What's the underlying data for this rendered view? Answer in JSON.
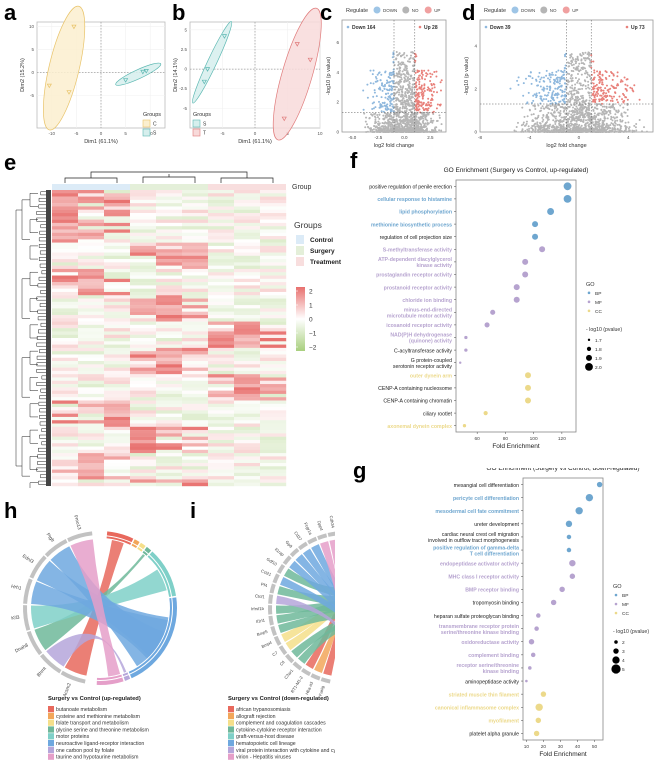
{
  "panel_labels": [
    "a",
    "b",
    "c",
    "d",
    "e",
    "f",
    "g",
    "h",
    "i"
  ],
  "chart_data": [
    {
      "id": "a",
      "type": "scatter",
      "title": "",
      "xlabel": "Dim1 (61.1%)",
      "ylabel": "Dim2 (15.2%)",
      "xlim": [
        -13,
        13
      ],
      "ylim": [
        -12,
        11
      ],
      "xticks": [
        -10,
        -5,
        0,
        5,
        10
      ],
      "yticks": [
        -5,
        0,
        5,
        10
      ],
      "legend_title": "Groups",
      "legend_position": "bottom-right",
      "series": [
        {
          "name": "C",
          "color": "#e9c46a",
          "fill": "#fbefcf",
          "points": [
            [
              -5.5,
              10
            ],
            [
              -10.5,
              -2.8
            ],
            [
              -6.5,
              -4.2
            ]
          ]
        },
        {
          "name": "S",
          "color": "#5cb8b2",
          "fill": "#d6efed",
          "points": [
            [
              5,
              -1.6
            ],
            [
              8.5,
              0.2
            ],
            [
              9.2,
              0.4
            ]
          ]
        }
      ]
    },
    {
      "id": "b",
      "type": "scatter",
      "title": "",
      "xlabel": "Dim1 (61.1%)",
      "ylabel": "Dim2 (14.1%)",
      "xlim": [
        -10,
        10
      ],
      "ylim": [
        -7.5,
        6
      ],
      "xticks": [
        -5,
        0,
        5,
        10
      ],
      "yticks": [
        -5,
        -2.5,
        0,
        2.5,
        5
      ],
      "legend_title": "Groups",
      "legend_position": "bottom-left",
      "series": [
        {
          "name": "S",
          "color": "#5cb8b2",
          "fill": "#d6efed",
          "points": [
            [
              -4.7,
              4.2
            ],
            [
              -7.3,
              0
            ],
            [
              -7.8,
              -1.6
            ]
          ]
        },
        {
          "name": "T",
          "color": "#e07b7b",
          "fill": "#f8dada",
          "points": [
            [
              6.5,
              3.2
            ],
            [
              8.5,
              1.2
            ],
            [
              4.5,
              -6.3
            ]
          ]
        }
      ]
    },
    {
      "id": "c",
      "type": "scatter",
      "title": "",
      "xlabel": "log2 fold change",
      "ylabel": "-log10 (p value)",
      "xlim": [
        -6,
        4
      ],
      "ylim": [
        0,
        7.5
      ],
      "xticks": [
        -5.0,
        -2.5,
        0.0,
        2.5
      ],
      "yticks": [
        0,
        2,
        4,
        6
      ],
      "legend_title": "Regulate",
      "legend_position": "top",
      "legend": [
        {
          "name": "DOWN",
          "color": "#9ec5e6"
        },
        {
          "name": "NO",
          "color": "#b5b5b5"
        },
        {
          "name": "UP",
          "color": "#f0a0a0"
        }
      ],
      "annotations": {
        "down": "Down 164",
        "up": "Up 28"
      },
      "thresholds": {
        "fc": [
          -1,
          1
        ],
        "p": 1.3
      },
      "summary": {
        "down_count": 164,
        "up_count": 28
      }
    },
    {
      "id": "d",
      "type": "scatter",
      "title": "",
      "xlabel": "log2 fold change",
      "ylabel": "-log10 (p value)",
      "xlim": [
        -8,
        6
      ],
      "ylim": [
        0,
        5.2
      ],
      "xticks": [
        -8,
        -4,
        0,
        4
      ],
      "yticks": [
        0,
        2,
        4
      ],
      "legend_title": "Regulate",
      "legend_position": "top",
      "legend": [
        {
          "name": "DOWN",
          "color": "#9ec5e6"
        },
        {
          "name": "NO",
          "color": "#b5b5b5"
        },
        {
          "name": "UP",
          "color": "#f0a0a0"
        }
      ],
      "annotations": {
        "down": "Down 39",
        "up": "Up 73"
      },
      "thresholds": {
        "fc": [
          -1,
          1
        ],
        "p": 1.3
      },
      "summary": {
        "down_count": 39,
        "up_count": 73
      }
    },
    {
      "id": "e",
      "type": "heatmap",
      "title": "",
      "annotation_label": "Group",
      "legend_title": "Groups",
      "groups": [
        {
          "name": "Control",
          "color": "#dcebf7"
        },
        {
          "name": "Surgery",
          "color": "#e4efd9"
        },
        {
          "name": "Treatment",
          "color": "#f8dede"
        }
      ],
      "columns_per_group": 3,
      "scale": {
        "ticks": [
          2,
          1,
          0,
          -1,
          -2
        ],
        "colors": [
          "#e8706e",
          "#ffffff",
          "#a8cf7e"
        ]
      },
      "row_count": 90
    },
    {
      "id": "f",
      "type": "scatter",
      "title": "GO Enrichment (Surgery vs Control, up-regulated)",
      "xlabel": "Fold Enrichment",
      "ylabel": "",
      "xlim": [
        45,
        130
      ],
      "xticks": [
        60,
        80,
        100,
        120
      ],
      "legend_title": "GO",
      "legend": [
        {
          "name": "BP",
          "color": "#6ea6cf"
        },
        {
          "name": "MF",
          "color": "#b6a3cf"
        },
        {
          "name": "CC",
          "color": "#ecd98a"
        }
      ],
      "size_legend_title": "- log10 (pvalue)",
      "size_legend": [
        1.7,
        1.8,
        1.9,
        2.0
      ],
      "terms": [
        {
          "term": "positive regulation of penile erection",
          "cat": "BP",
          "x": 124,
          "p": 2.0,
          "label_color": "#222222"
        },
        {
          "term": "cellular response to histamine",
          "cat": "BP",
          "x": 124,
          "p": 2.0,
          "label_color": "#6ea6cf"
        },
        {
          "term": "lipid phosphorylation",
          "cat": "BP",
          "x": 112,
          "p": 1.95,
          "label_color": "#6ea6cf"
        },
        {
          "term": "methionine biosynthetic process",
          "cat": "BP",
          "x": 101,
          "p": 1.9,
          "label_color": "#6ea6cf"
        },
        {
          "term": "regulation of cell projection size",
          "cat": "BP",
          "x": 101,
          "p": 1.9,
          "label_color": "#222222"
        },
        {
          "term": "S-methyltransferase activity",
          "cat": "MF",
          "x": 106,
          "p": 1.9,
          "label_color": "#b6a3cf"
        },
        {
          "term": "ATP-dependent diacylglycerol\nkinase activity",
          "cat": "MF",
          "x": 94,
          "p": 1.9,
          "label_color": "#b6a3cf"
        },
        {
          "term": "prostaglandin receptor activity",
          "cat": "MF",
          "x": 94,
          "p": 1.9,
          "label_color": "#b6a3cf"
        },
        {
          "term": "prostanoid receptor activity",
          "cat": "MF",
          "x": 88,
          "p": 1.9,
          "label_color": "#b6a3cf"
        },
        {
          "term": "chloride ion binding",
          "cat": "MF",
          "x": 88,
          "p": 1.9,
          "label_color": "#b6a3cf"
        },
        {
          "term": "minus-end-directed\nmicrotubule motor activity",
          "cat": "MF",
          "x": 71,
          "p": 1.85,
          "label_color": "#b6a3cf"
        },
        {
          "term": "icosanoid receptor activity",
          "cat": "MF",
          "x": 67,
          "p": 1.85,
          "label_color": "#b6a3cf"
        },
        {
          "term": "NAD(P)H dehydrogenase\n(quinone) activity",
          "cat": "MF",
          "x": 52,
          "p": 1.75,
          "label_color": "#b6a3cf"
        },
        {
          "term": "C-acyltransferase activity",
          "cat": "MF",
          "x": 52,
          "p": 1.75,
          "label_color": "#222222"
        },
        {
          "term": "G protein-coupled\nserotonin receptor activity",
          "cat": "MF",
          "x": 48,
          "p": 1.7,
          "label_color": "#222222"
        },
        {
          "term": "outer dynein arm",
          "cat": "CC",
          "x": 96,
          "p": 1.9,
          "label_color": "#ecd98a"
        },
        {
          "term": "CENP-A containing nucleosome",
          "cat": "CC",
          "x": 96,
          "p": 1.9,
          "label_color": "#222222"
        },
        {
          "term": "CENP-A containing chromatin",
          "cat": "CC",
          "x": 96,
          "p": 1.9,
          "label_color": "#222222"
        },
        {
          "term": "ciliary rootlet",
          "cat": "CC",
          "x": 66,
          "p": 1.8,
          "label_color": "#222222"
        },
        {
          "term": "axonemal dynein complex",
          "cat": "CC",
          "x": 51,
          "p": 1.75,
          "label_color": "#ecd98a"
        }
      ]
    },
    {
      "id": "g",
      "type": "scatter",
      "title": "GO Enrichment (Surgery vs Control, down-regulated)",
      "xlabel": "Fold Enrichment",
      "ylabel": "",
      "xlim": [
        8,
        55
      ],
      "xticks": [
        10,
        20,
        30,
        40,
        50
      ],
      "legend_title": "GO",
      "legend": [
        {
          "name": "BP",
          "color": "#6ea6cf"
        },
        {
          "name": "MF",
          "color": "#b6a3cf"
        },
        {
          "name": "CC",
          "color": "#ecd98a"
        }
      ],
      "size_legend_title": "- log10 (pvalue)",
      "size_legend": [
        2,
        3,
        4,
        5
      ],
      "terms": [
        {
          "term": "mesangial cell differentiation",
          "cat": "BP",
          "x": 53,
          "p": 3,
          "label_color": "#222222"
        },
        {
          "term": "pericyte cell differentiation",
          "cat": "BP",
          "x": 47,
          "p": 4,
          "label_color": "#6ea6cf"
        },
        {
          "term": "mesodermal cell fate commitment",
          "cat": "BP",
          "x": 41,
          "p": 4,
          "label_color": "#6ea6cf"
        },
        {
          "term": "ureter development",
          "cat": "BP",
          "x": 35,
          "p": 3.5,
          "label_color": "#222222"
        },
        {
          "term": "cardiac neural crest cell migration\ninvolved in outflow tract morphogenesis",
          "cat": "BP",
          "x": 35,
          "p": 2.5,
          "label_color": "#222222"
        },
        {
          "term": "positive regulation of gamma-delta\nT cell differentiation",
          "cat": "BP",
          "x": 35,
          "p": 2.5,
          "label_color": "#6ea6cf"
        },
        {
          "term": "endopeptidase activator activity",
          "cat": "MF",
          "x": 37,
          "p": 3.5,
          "label_color": "#b6a3cf"
        },
        {
          "term": "MHC class I receptor activity",
          "cat": "MF",
          "x": 37,
          "p": 3,
          "label_color": "#b6a3cf"
        },
        {
          "term": "BMP receptor binding",
          "cat": "MF",
          "x": 31,
          "p": 3,
          "label_color": "#b6a3cf"
        },
        {
          "term": "tropomyosin binding",
          "cat": "MF",
          "x": 26,
          "p": 3,
          "label_color": "#222222"
        },
        {
          "term": "heparan sulfate proteoglycan binding",
          "cat": "MF",
          "x": 17,
          "p": 2.5,
          "label_color": "#222222"
        },
        {
          "term": "transmembrane receptor protein\nserine/threonine kinase binding",
          "cat": "MF",
          "x": 16,
          "p": 2.5,
          "label_color": "#b6a3cf"
        },
        {
          "term": "oxidoreductase activity",
          "cat": "MF",
          "x": 13,
          "p": 3,
          "label_color": "#b6a3cf"
        },
        {
          "term": "complement binding",
          "cat": "MF",
          "x": 14,
          "p": 2.5,
          "label_color": "#b6a3cf"
        },
        {
          "term": "receptor serine/threonine\nkinase binding",
          "cat": "MF",
          "x": 12,
          "p": 2,
          "label_color": "#b6a3cf"
        },
        {
          "term": "aminopeptidase activity",
          "cat": "MF",
          "x": 10,
          "p": 1.5,
          "label_color": "#222222"
        },
        {
          "term": "striated muscle thin filament",
          "cat": "CC",
          "x": 20,
          "p": 3,
          "label_color": "#ecd98a"
        },
        {
          "term": "canonical inflammasome complex",
          "cat": "CC",
          "x": 17.5,
          "p": 4,
          "label_color": "#ecd98a"
        },
        {
          "term": "myofilament",
          "cat": "CC",
          "x": 17,
          "p": 3,
          "label_color": "#ecd98a"
        },
        {
          "term": "platelet alpha granule",
          "cat": "CC",
          "x": 16,
          "p": 3,
          "label_color": "#222222"
        }
      ]
    },
    {
      "id": "h",
      "type": "chord",
      "title": "Surgery vs Control (up-regulated)",
      "genes": [
        "Acsm2",
        "Bhmt",
        "Dnah8",
        "Kif3",
        "Hrh1",
        "Ednl3",
        "Ptgfr",
        "Fmo13"
      ],
      "pathways": [
        {
          "name": "butanoate metabolism",
          "color": "#e8695d"
        },
        {
          "name": "cysteine and methionine metabolism",
          "color": "#f2a65a"
        },
        {
          "name": "folate transport and metabolism",
          "color": "#f5df8a"
        },
        {
          "name": "glycine serine and threonine metabolism",
          "color": "#6fb89a"
        },
        {
          "name": "motor proteins",
          "color": "#7fd0c8"
        },
        {
          "name": "neuroactive ligand-receptor interaction",
          "color": "#6ea8df"
        },
        {
          "name": "one carbon pool by folate",
          "color": "#b5a6da"
        },
        {
          "name": "taurine and hypotaurine metabolism",
          "color": "#e59fc9"
        }
      ]
    },
    {
      "id": "i",
      "type": "chord",
      "title": "Surgery vs Control (down-regulated)",
      "genes": [
        "Fasig",
        "Hba-a3",
        "RT1-M1-2",
        "C3ar1",
        "Cfi",
        "C7",
        "Bmp4",
        "Bmp5",
        "Il1rl1",
        "Irfrsf1b",
        "Ctcf1",
        "Pf4",
        "Ccl21",
        "Gdf10",
        "Il1rap",
        "Gp9",
        "Cd37",
        "Fcgr1a",
        "Dpp4",
        "Cdh34"
      ],
      "pathways": [
        {
          "name": "african trypanosomiasis",
          "color": "#e8695d"
        },
        {
          "name": "allograft rejection",
          "color": "#f2a65a"
        },
        {
          "name": "complement and coagulation cascades",
          "color": "#f5df8a"
        },
        {
          "name": "cytokine-cytokine receptor interaction",
          "color": "#6fb89a"
        },
        {
          "name": "graft-versus-host disease",
          "color": "#7fd0c8"
        },
        {
          "name": "hematopoietic cell lineage",
          "color": "#6ea8df"
        },
        {
          "name": "viral protein interaction with cytokine and cytokine receptor",
          "color": "#b5a6da"
        },
        {
          "name": "virion - Hepatitis viruses",
          "color": "#e59fc9"
        }
      ]
    }
  ]
}
